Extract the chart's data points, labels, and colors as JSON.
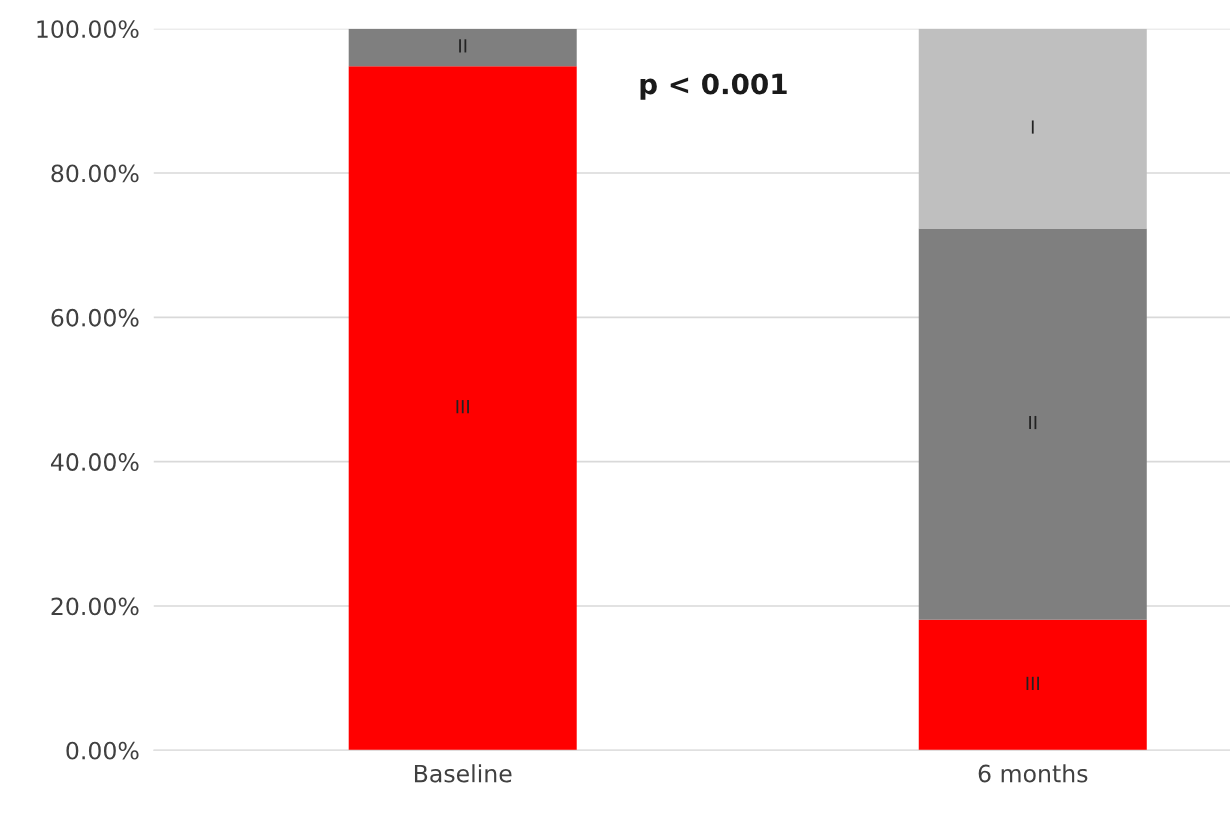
{
  "chart_data": {
    "type": "bar",
    "stacked": true,
    "categories": [
      "Baseline",
      "6 months"
    ],
    "series": [
      {
        "name": "III",
        "color": "#ff0000",
        "values": [
          94.8,
          18.1
        ]
      },
      {
        "name": "II",
        "color": "#7f7f7f",
        "values": [
          5.2,
          54.2
        ]
      },
      {
        "name": "I",
        "color": "#bfbfbf",
        "values": [
          null,
          27.7
        ]
      }
    ],
    "ylim": [
      0,
      100
    ],
    "yticks": [
      {
        "value": 0,
        "label": "0.00%"
      },
      {
        "value": 20,
        "label": "20.00%"
      },
      {
        "value": 40,
        "label": "40.00%"
      },
      {
        "value": 60,
        "label": "60.00%"
      },
      {
        "value": 80,
        "label": "80.00%"
      },
      {
        "value": 100,
        "label": "100.00%"
      }
    ],
    "grid": "y",
    "annotations": [
      "p < 0.001"
    ]
  }
}
